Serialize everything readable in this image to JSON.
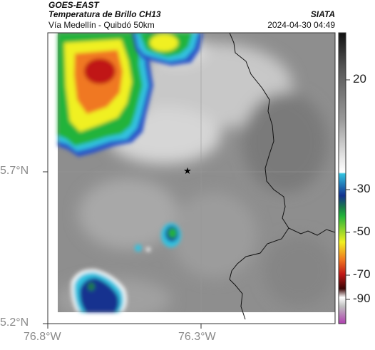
{
  "header": {
    "source": "GOES-EAST",
    "product": "Temperatura de Brillo CH13",
    "subtitle": "Vía Medellín - Quibdó 50km",
    "agency": "SIATA",
    "timestamp": "2024-04-30 04:49"
  },
  "axes": {
    "lat_ticks": [
      "5.7°N",
      "5.2°N"
    ],
    "lon_ticks": [
      "76.8°W",
      "76.3°W"
    ]
  },
  "colorbar": {
    "tick_labels": [
      "20",
      "-30",
      "-50",
      "-70",
      "-90"
    ],
    "colors": {
      "warm_top": "#1a1a1a",
      "gray_mid": "#9a9a9a",
      "white": "#ffffff",
      "cyan": "#33c3e0",
      "blue": "#12318f",
      "green": "#22b33a",
      "yellow": "#f0f020",
      "orange": "#f07820",
      "red": "#c01818",
      "dark_red": "#3a0505",
      "magenta": "#b040b0"
    }
  },
  "map": {
    "marker_icon": "star-icon",
    "background_color": "#8a8a8a"
  }
}
